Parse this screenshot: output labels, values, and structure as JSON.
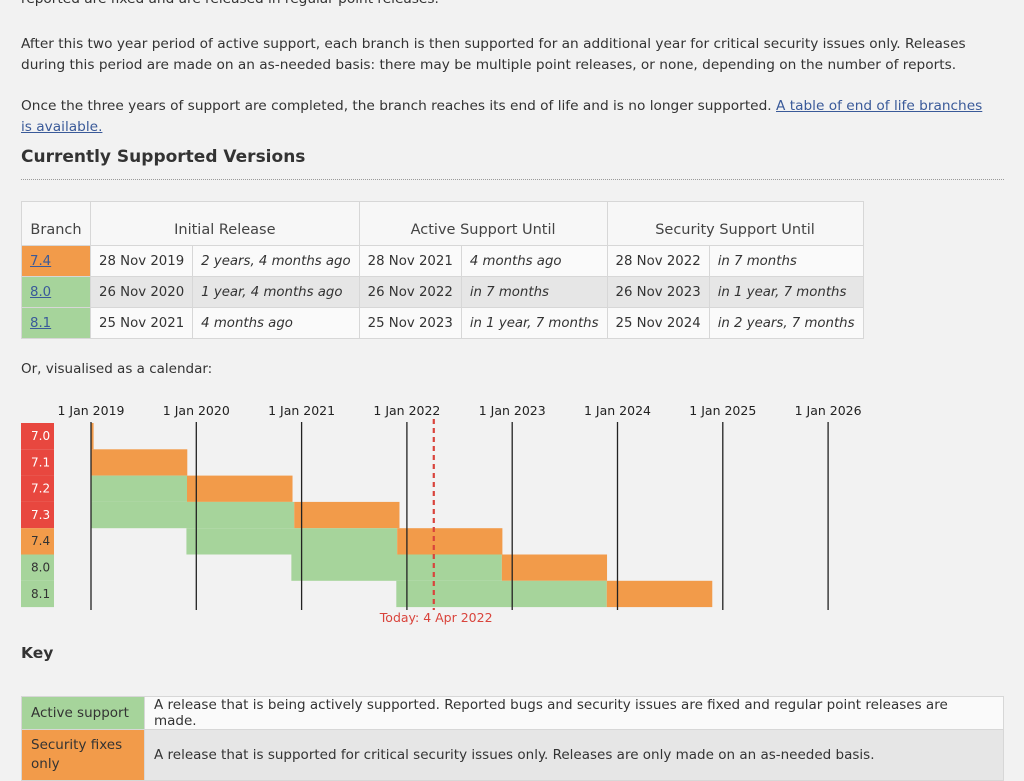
{
  "paragraphs": {
    "top_fragment": "reported are fixed and are released in regular point releases.",
    "p1": "After this two year period of active support, each branch is then supported for an additional year for critical security issues only. Releases during this period are made on an as-needed basis: there may be multiple point releases, or none, depending on the number of reports.",
    "p2_text": "Once the three years of support are completed, the branch reaches its end of life and is no longer supported.",
    "p2_link": "A table of end of life branches is available."
  },
  "section_title": "Currently Supported Versions",
  "table": {
    "headers": [
      "Branch",
      "Initial Release",
      "Active Support Until",
      "Security Support Until"
    ],
    "rows": [
      {
        "branch": "7.4",
        "status": "security",
        "initial": "28 Nov 2019",
        "initial_rel": "2 years, 4 months ago",
        "active": "28 Nov 2021",
        "active_rel": "4 months ago",
        "security": "28 Nov 2022",
        "security_rel": "in 7 months"
      },
      {
        "branch": "8.0",
        "status": "stable",
        "initial": "26 Nov 2020",
        "initial_rel": "1 year, 4 months ago",
        "active": "26 Nov 2022",
        "active_rel": "in 7 months",
        "security": "26 Nov 2023",
        "security_rel": "in 1 year, 7 months"
      },
      {
        "branch": "8.1",
        "status": "stable",
        "initial": "25 Nov 2021",
        "initial_rel": "4 months ago",
        "active": "25 Nov 2023",
        "active_rel": "in 1 year, 7 months",
        "security": "25 Nov 2024",
        "security_rel": "in 2 years, 7 months"
      }
    ]
  },
  "calendar_intro": "Or, visualised as a calendar:",
  "calendar": {
    "years": [
      "1 Jan 2019",
      "1 Jan 2020",
      "1 Jan 2021",
      "1 Jan 2022",
      "1 Jan 2023",
      "1 Jan 2024",
      "1 Jan 2025",
      "1 Jan 2026"
    ],
    "today_label": "Today: 4 Apr 2022",
    "today_date": "2022-04-04",
    "branches": [
      {
        "name": "7.0",
        "status": "eol",
        "active_start": "",
        "active_end": "",
        "security_end": "2019-01-10"
      },
      {
        "name": "7.1",
        "status": "eol",
        "active_start": "",
        "active_end": "2019-01-01",
        "security_end": "2019-12-01"
      },
      {
        "name": "7.2",
        "status": "eol",
        "active_start": "2019-01-01",
        "active_end": "2019-11-30",
        "security_end": "2020-11-30"
      },
      {
        "name": "7.3",
        "status": "eol",
        "active_start": "2019-01-01",
        "active_end": "2020-12-06",
        "security_end": "2021-12-06"
      },
      {
        "name": "7.4",
        "status": "security",
        "active_start": "2019-11-28",
        "active_end": "2021-11-28",
        "security_end": "2022-11-28"
      },
      {
        "name": "8.0",
        "status": "stable",
        "active_start": "2020-11-26",
        "active_end": "2022-11-26",
        "security_end": "2023-11-26"
      },
      {
        "name": "8.1",
        "status": "stable",
        "active_start": "2021-11-25",
        "active_end": "2023-11-25",
        "security_end": "2024-11-25"
      }
    ]
  },
  "key": {
    "title": "Key",
    "items": [
      {
        "label": "Active support",
        "desc": "A release that is being actively supported. Reported bugs and security issues are fixed and regular point releases are made."
      },
      {
        "label": "Security fixes only",
        "desc": "A release that is supported for critical security issues only. Releases are only made on an as-needed basis."
      }
    ]
  },
  "colors": {
    "eol": "#e8473f",
    "security": "#f29b4a",
    "stable": "#a6d49b",
    "today": "#d9443c",
    "link": "#3a5a99"
  }
}
